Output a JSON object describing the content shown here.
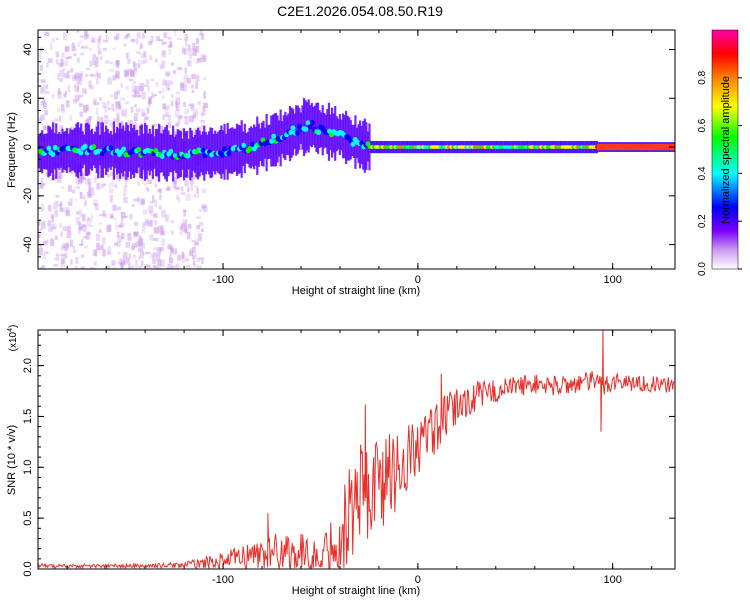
{
  "title": "C2E1.2026.054.08.50.R19",
  "chart_data": [
    {
      "type": "heatmap",
      "xlabel": "Height of straight line (km)",
      "ylabel": "Frequency (Hz)",
      "xlim": [
        -195,
        132
      ],
      "ylim": [
        -50,
        48
      ],
      "xticks": [
        -100,
        0,
        100
      ],
      "xtick_labels": [
        "-100",
        "0",
        "100"
      ],
      "yticks": [
        -40,
        -20,
        0,
        20,
        40
      ],
      "ytick_labels": [
        "-40",
        "-20",
        "0",
        "20",
        "40"
      ],
      "ridge_x": [
        -195,
        -170,
        -140,
        -120,
        -100,
        -85,
        -70,
        -60,
        -55,
        -50,
        -45,
        -40,
        -35,
        -30,
        -25,
        -20,
        -10,
        0,
        20,
        40,
        60,
        80,
        92,
        100,
        132
      ],
      "ridge_y": [
        -2,
        -1,
        -2,
        -3,
        -2,
        0,
        4,
        8,
        9,
        7,
        6,
        5,
        3,
        1,
        0,
        0,
        0,
        0,
        0,
        0,
        0,
        0,
        0,
        0,
        0
      ],
      "colorbar": {
        "label": "Normalized spectral amplitude",
        "range": [
          0,
          1
        ],
        "ticks": [
          0.0,
          0.2,
          0.4,
          0.6,
          0.8
        ],
        "tick_labels": [
          "0.0",
          "0.2",
          "0.4",
          "0.6",
          "0.8"
        ],
        "colors": [
          "#ffffff",
          "#cc99ee",
          "#7a00ff",
          "#0000ff",
          "#00ffff",
          "#00ff00",
          "#ffff00",
          "#ff8000",
          "#ff0000",
          "#ff00aa"
        ]
      }
    },
    {
      "type": "line",
      "xlabel": "Height of straight line (km)",
      "ylabel": "SNR (10 * v/v)",
      "multiplier": "(x10",
      "multiplier_exp": "4",
      "multiplier_close": ")",
      "xlim": [
        -195,
        132
      ],
      "ylim": [
        0,
        2.35
      ],
      "xticks": [
        -100,
        0,
        100
      ],
      "xtick_labels": [
        "-100",
        "0",
        "100"
      ],
      "yticks": [
        0.0,
        0.5,
        1.0,
        1.5,
        2.0
      ],
      "ytick_labels": [
        "0.0",
        "0.5",
        "1.0",
        "1.5",
        "2.0"
      ],
      "series": [
        {
          "name": "SNR",
          "color": "#e8302a",
          "x": [
            -195,
            -180,
            -160,
            -140,
            -120,
            -100,
            -90,
            -80,
            -70,
            -60,
            -50,
            -40,
            -35,
            -30,
            -25,
            -20,
            -15,
            -10,
            -5,
            0,
            10,
            20,
            30,
            40,
            50,
            60,
            70,
            80,
            90,
            95,
            100,
            110,
            120,
            132
          ],
          "y": [
            0.03,
            0.03,
            0.03,
            0.03,
            0.04,
            0.08,
            0.12,
            0.15,
            0.18,
            0.15,
            0.1,
            0.35,
            0.55,
            0.75,
            0.8,
            0.85,
            0.9,
            1.0,
            1.1,
            1.2,
            1.4,
            1.6,
            1.7,
            1.75,
            1.8,
            1.82,
            1.8,
            1.82,
            1.85,
            1.8,
            1.85,
            1.83,
            1.82,
            1.8
          ],
          "noise": [
            0.02,
            0.02,
            0.02,
            0.02,
            0.03,
            0.08,
            0.12,
            0.16,
            0.2,
            0.2,
            0.15,
            0.45,
            0.55,
            0.55,
            0.55,
            0.5,
            0.45,
            0.4,
            0.35,
            0.3,
            0.25,
            0.2,
            0.15,
            0.12,
            0.1,
            0.1,
            0.1,
            0.1,
            0.1,
            0.12,
            0.1,
            0.08,
            0.08,
            0.08
          ],
          "spikes": [
            {
              "x": -77,
              "y": 0.55
            },
            {
              "x": -27,
              "y": 1.62
            },
            {
              "x": -18,
              "y": 1.15
            },
            {
              "x": 12,
              "y": 1.92
            },
            {
              "x": 95,
              "y": 2.35
            },
            {
              "x": 94,
              "y": 1.35
            }
          ]
        }
      ]
    }
  ]
}
